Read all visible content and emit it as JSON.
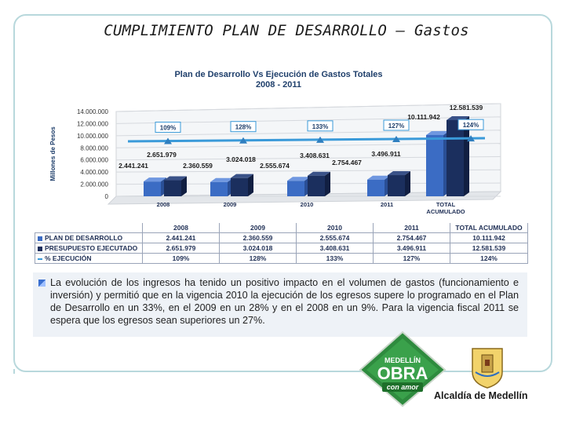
{
  "page_title": "CUMPLIMIENTO PLAN DE DESARROLLO – Gastos",
  "chart_data": {
    "type": "bar",
    "title": "Plan de Desarrollo Vs Ejecución de Gastos Totales",
    "subtitle": "2008 - 2011",
    "ylabel": "Millones de Pesos",
    "xlabel": "",
    "ylim": [
      0,
      14000000
    ],
    "yticks": [
      0,
      2000000,
      4000000,
      6000000,
      8000000,
      10000000,
      12000000,
      14000000
    ],
    "ytick_labels": [
      "0",
      "2.000.000",
      "4.000.000",
      "6.000.000",
      "8.000.000",
      "10.000.000",
      "12.000.000",
      "14.000.000"
    ],
    "categories": [
      "2008",
      "2009",
      "2010",
      "2011",
      "TOTAL ACUMULADO"
    ],
    "series": [
      {
        "name": "PLAN DE DESARROLLO",
        "values": [
          2441241,
          2360559,
          2555674,
          2754467,
          10111942
        ],
        "labels": [
          "2.441.241",
          "2.360.559",
          "2.555.674",
          "2.754.467",
          "10.111.942"
        ]
      },
      {
        "name": "PRESUPUESTO EJECUTADO",
        "values": [
          2651979,
          3024018,
          3408631,
          3496911,
          12581539
        ],
        "labels": [
          "2.651.979",
          "3.024.018",
          "3.408.631",
          "3.496.911",
          "12.581.539"
        ]
      },
      {
        "name": "% EJECUCIÓN",
        "values": [
          109,
          128,
          133,
          127,
          124
        ],
        "labels": [
          "109%",
          "128%",
          "133%",
          "127%",
          "124%"
        ]
      }
    ],
    "colors": {
      "plan": "#3b6cc4",
      "ejecutado": "#1b2f5e",
      "pct": "#3a9ad9"
    }
  },
  "table": {
    "header": [
      "2008",
      "2009",
      "2010",
      "2011",
      "TOTAL ACUMULADO"
    ],
    "rows": [
      {
        "label": "PLAN DE DESARROLLO",
        "cells": [
          "2.441.241",
          "2.360.559",
          "2.555.674",
          "2.754.467",
          "10.111.942"
        ]
      },
      {
        "label": "PRESUPUESTO EJECUTADO",
        "cells": [
          "2.651.979",
          "3.024.018",
          "3.408.631",
          "3.496.911",
          "12.581.539"
        ]
      },
      {
        "label": "% EJECUCIÓN",
        "cells": [
          "109%",
          "128%",
          "133%",
          "127%",
          "124%"
        ]
      }
    ]
  },
  "paragraph": "La evolución de los ingresos ha tenido un positivo impacto en el volumen de gastos (funcionamiento e inversión) y permitió que en la vigencia 2010 la ejecución de los egresos supere lo programado en el Plan de Desarrollo en un 33%, en el 2009 en un 28% y en el 2008 en un 9%. Para la vigencia fiscal 2011 se espera que los egresos sean superiores un 27%.",
  "logos": {
    "medellin_top": "MEDELLÍN",
    "medellin_main": "OBRA",
    "medellin_sub": "con amor",
    "alcaldia": "Alcaldía de Medellín"
  }
}
